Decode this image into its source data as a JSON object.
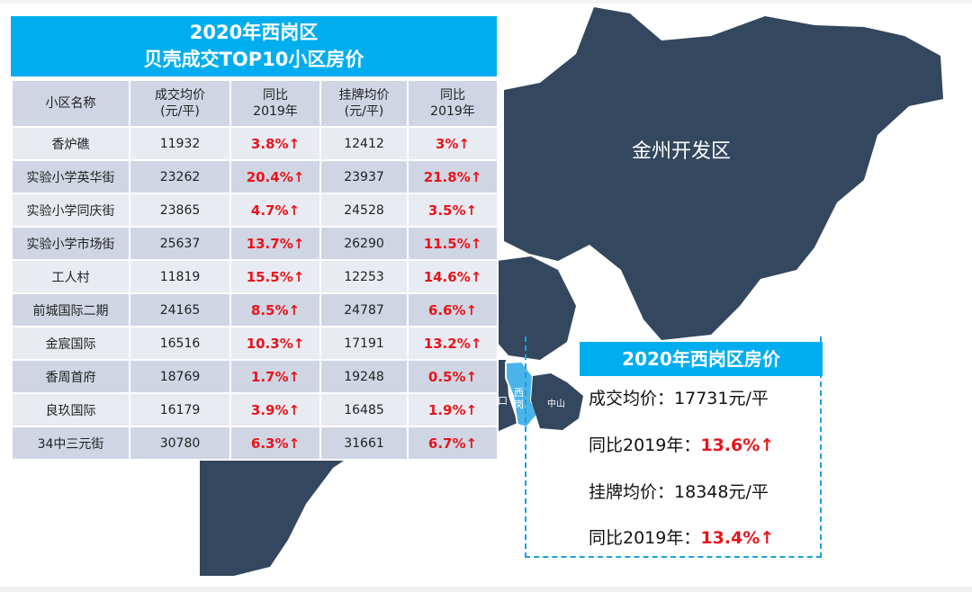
{
  "table": {
    "title_line1": "2020年西岗区",
    "title_line2": "贝壳成交TOP10小区房价",
    "headers": [
      "小区名称",
      "成交均价\n(元/平)",
      "同比\n2019年",
      "挂牌均价\n(元/平)",
      "同比\n2019年"
    ],
    "rows": [
      {
        "name": "香炉礁",
        "deal": "11932",
        "deal_yoy": "3.8%↑",
        "list": "12412",
        "list_yoy": "3%↑"
      },
      {
        "name": "实验小学英华街",
        "deal": "23262",
        "deal_yoy": "20.4%↑",
        "list": "23937",
        "list_yoy": "21.8%↑"
      },
      {
        "name": "实验小学同庆街",
        "deal": "23865",
        "deal_yoy": "4.7%↑",
        "list": "24528",
        "list_yoy": "3.5%↑"
      },
      {
        "name": "实验小学市场街",
        "deal": "25637",
        "deal_yoy": "13.7%↑",
        "list": "26290",
        "list_yoy": "11.5%↑"
      },
      {
        "name": "工人村",
        "deal": "11819",
        "deal_yoy": "15.5%↑",
        "list": "12253",
        "list_yoy": "14.6%↑"
      },
      {
        "name": "前城国际二期",
        "deal": "24165",
        "deal_yoy": "8.5%↑",
        "list": "24787",
        "list_yoy": "6.6%↑"
      },
      {
        "name": "金宸国际",
        "deal": "16516",
        "deal_yoy": "10.3%↑",
        "list": "17191",
        "list_yoy": "13.2%↑"
      },
      {
        "name": "香周首府",
        "deal": "18769",
        "deal_yoy": "1.7%↑",
        "list": "19248",
        "list_yoy": "0.5%↑"
      },
      {
        "name": "良玖国际",
        "deal": "16179",
        "deal_yoy": "3.9%↑",
        "list": "16485",
        "list_yoy": "1.9%↑"
      },
      {
        "name": "34中三元街",
        "deal": "30780",
        "deal_yoy": "6.3%↑",
        "list": "31661",
        "list_yoy": "6.7%↑"
      }
    ]
  },
  "map": {
    "labels": {
      "jinzhou": "金州开发区",
      "xigang": "西岗",
      "zhongshan": "中山",
      "shahekou_partial": "口"
    },
    "colors": {
      "land": "#33475e",
      "highlight": "#4ab4ea",
      "accent": "#00adef",
      "up": "#e8141b"
    }
  },
  "summary": {
    "title": "2020年西岗区房价",
    "deal_label": "成交均价：",
    "deal_value": "17731元/平",
    "deal_yoy_label": "同比2019年：",
    "deal_yoy_value": "13.6%↑",
    "list_label": "挂牌均价：",
    "list_value": "18348元/平",
    "list_yoy_label": "同比2019年：",
    "list_yoy_value": "13.4%↑"
  }
}
